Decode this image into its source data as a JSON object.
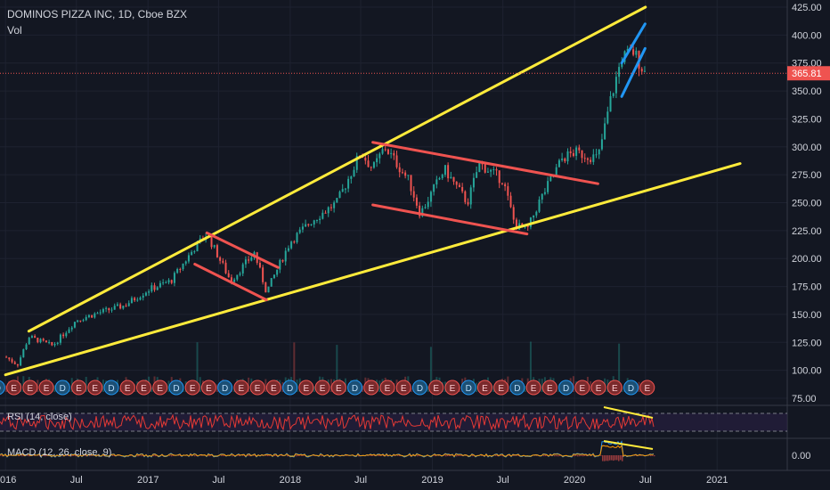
{
  "header": {
    "title": "DOMINOS PIZZA INC, 1D, Cboe BZX",
    "volume_label": "Vol"
  },
  "indicators": {
    "rsi_label": "RSI (14, close)",
    "macd_label": "MACD (12, 26, close, 9)"
  },
  "colors": {
    "background": "#131722",
    "up": "#26a69a",
    "down": "#ef5350",
    "trendline_yellow": "#ffeb3b",
    "channel_red": "#ef5350",
    "channel_blue": "#2196f3",
    "rsi": "#e53935",
    "price_tag": "#ef5350"
  },
  "chart_data": {
    "type": "candlestick",
    "symbol": "DOMINOS PIZZA INC",
    "interval": "1D",
    "exchange": "Cboe BZX",
    "last_price": 365.81,
    "last_price_label": "365.81",
    "y_ticks": [
      "425.00",
      "400.00",
      "375.00",
      "350.00",
      "325.00",
      "300.00",
      "275.00",
      "250.00",
      "225.00",
      "200.00",
      "175.00",
      "150.00",
      "125.00",
      "100.00",
      "75.00"
    ],
    "ylim": [
      75,
      425
    ],
    "x_ticks": [
      "2016",
      "Jul",
      "2017",
      "Jul",
      "2018",
      "Jul",
      "2019",
      "Jul",
      "2020",
      "Jul",
      "2021"
    ],
    "price_path": [
      [
        "2016-01",
        112
      ],
      [
        "2016-02",
        105
      ],
      [
        "2016-03",
        130
      ],
      [
        "2016-05",
        122
      ],
      [
        "2016-07",
        145
      ],
      [
        "2016-09",
        152
      ],
      [
        "2016-11",
        158
      ],
      [
        "2017-01",
        172
      ],
      [
        "2017-03",
        180
      ],
      [
        "2017-05",
        210
      ],
      [
        "2017-06",
        222
      ],
      [
        "2017-08",
        180
      ],
      [
        "2017-10",
        205
      ],
      [
        "2017-11",
        170
      ],
      [
        "2018-01",
        215
      ],
      [
        "2018-03",
        235
      ],
      [
        "2018-05",
        250
      ],
      [
        "2018-07",
        295
      ],
      [
        "2018-08",
        280
      ],
      [
        "2018-09",
        300
      ],
      [
        "2018-11",
        270
      ],
      [
        "2018-12",
        240
      ],
      [
        "2019-02",
        280
      ],
      [
        "2019-04",
        250
      ],
      [
        "2019-05",
        285
      ],
      [
        "2019-07",
        270
      ],
      [
        "2019-08",
        230
      ],
      [
        "2019-09",
        225
      ],
      [
        "2019-10",
        250
      ],
      [
        "2019-12",
        290
      ],
      [
        "2020-01",
        295
      ],
      [
        "2020-03",
        290
      ],
      [
        "2020-03-20",
        320
      ],
      [
        "2020-04",
        340
      ],
      [
        "2020-05",
        380
      ],
      [
        "2020-06",
        385
      ],
      [
        "2020-06-30",
        365.81
      ]
    ],
    "earnings_markers": [
      "E",
      "D",
      "E",
      "E",
      "E",
      "D",
      "E",
      "E",
      "D",
      "E",
      "E",
      "E",
      "D",
      "E",
      "E",
      "D",
      "E",
      "E",
      "E",
      "D",
      "E",
      "E",
      "E",
      "D",
      "E",
      "E",
      "E",
      "D",
      "E",
      "E",
      "D",
      "E",
      "E",
      "D",
      "E",
      "E",
      "D",
      "E",
      "E",
      "E",
      "D",
      "E"
    ],
    "trendlines": [
      {
        "name": "upper wedge",
        "color": "yellow",
        "from": [
          "2016-03",
          135
        ],
        "to": [
          "2020-07",
          425
        ]
      },
      {
        "name": "lower wedge",
        "color": "yellow",
        "from": [
          "2016-01",
          96
        ],
        "to": [
          "2021-03",
          285
        ]
      },
      {
        "name": "channel 2017 top",
        "color": "red",
        "from": [
          "2017-06",
          223
        ],
        "to": [
          "2017-12",
          192
        ]
      },
      {
        "name": "channel 2017 bottom",
        "color": "red",
        "from": [
          "2017-05",
          195
        ],
        "to": [
          "2017-11",
          163
        ]
      },
      {
        "name": "channel 2018-19 top",
        "color": "red",
        "from": [
          "2018-08",
          304
        ],
        "to": [
          "2020-03",
          267
        ]
      },
      {
        "name": "channel 2018-19 bottom",
        "color": "red",
        "from": [
          "2018-08",
          248
        ],
        "to": [
          "2019-09",
          222
        ]
      },
      {
        "name": "channel 2020 top",
        "color": "blue",
        "from": [
          "2020-05",
          375
        ],
        "to": [
          "2020-06-30",
          410
        ]
      },
      {
        "name": "channel 2020 bottom",
        "color": "blue",
        "from": [
          "2020-05",
          345
        ],
        "to": [
          "2020-06-30",
          388
        ]
      }
    ],
    "rsi": {
      "upper_band": 70,
      "lower_band": 30
    },
    "macd": {
      "y_tick": "0.00"
    }
  }
}
